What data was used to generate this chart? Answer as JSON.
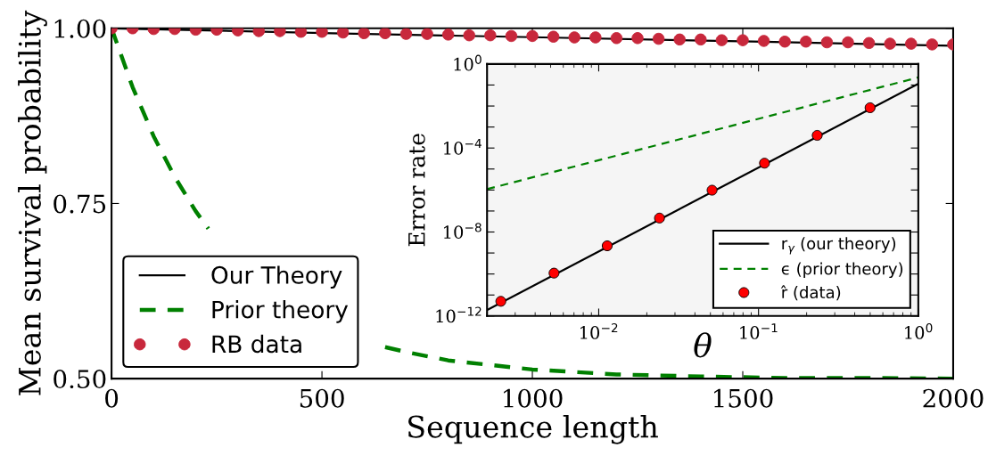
{
  "chart_data": [
    {
      "type": "line",
      "xlabel": "Sequence length",
      "ylabel": "Mean survival probability",
      "xlim": [
        0,
        2000
      ],
      "ylim": [
        0.5,
        1.0
      ],
      "xticks": [
        0,
        500,
        1000,
        1500,
        2000
      ],
      "yticks": [
        {
          "value": 0.5,
          "label": "0.50"
        },
        {
          "value": 0.75,
          "label": "0.75"
        },
        {
          "value": 1.0,
          "label": "1.00"
        }
      ],
      "grid": false,
      "legend": "bottom left",
      "series": [
        {
          "name": "Our Theory",
          "color": "#000000",
          "line_style": "solid",
          "x": [
            0,
            525,
            1025,
            1525,
            2000
          ],
          "values": [
            1.0,
            0.993,
            0.987,
            0.981,
            0.975
          ]
        },
        {
          "name": "Prior theory",
          "color": "#008000",
          "line_style": "dashed",
          "x": [
            0,
            50,
            100,
            150,
            200,
            230,
            300,
            400,
            500,
            600,
            650,
            700,
            800,
            1000,
            1200,
            1400,
            1600,
            1800,
            2000
          ],
          "values": [
            1.0,
            0.916,
            0.846,
            0.788,
            0.739,
            0.714,
            null,
            null,
            null,
            null,
            0.545,
            0.538,
            0.526,
            0.513,
            0.506,
            0.503,
            0.501,
            0.501,
            0.5
          ]
        },
        {
          "name": "RB data",
          "type": "scatter",
          "color": "#c8283c",
          "marker": "circle",
          "x": [
            0,
            50,
            100,
            150,
            200,
            250,
            300,
            350,
            400,
            450,
            500,
            550,
            600,
            650,
            700,
            750,
            800,
            850,
            900,
            950,
            1000,
            1050,
            1100,
            1150,
            1200,
            1250,
            1300,
            1350,
            1400,
            1450,
            1500,
            1550,
            1600,
            1650,
            1700,
            1750,
            1800,
            1850,
            1900,
            1950,
            2000
          ],
          "values": [
            1.0,
            1.0,
            0.999,
            0.999,
            0.998,
            0.998,
            0.997,
            0.996,
            0.996,
            0.995,
            0.995,
            0.994,
            0.993,
            0.993,
            0.992,
            0.992,
            0.991,
            0.99,
            0.99,
            0.989,
            0.989,
            0.988,
            0.987,
            0.987,
            0.986,
            0.986,
            0.985,
            0.984,
            0.984,
            0.983,
            0.983,
            0.982,
            0.981,
            0.981,
            0.98,
            0.98,
            0.979,
            0.978,
            0.978,
            0.977,
            0.977
          ]
        }
      ]
    },
    {
      "type": "line",
      "xlabel": "θ",
      "ylabel": "Error rate",
      "log": "xy",
      "xlim": [
        0.002,
        1
      ],
      "ylim": [
        1e-12,
        1
      ],
      "xticks": [
        {
          "value": 0.01,
          "label": "10$^{−2}$"
        },
        {
          "value": 0.1,
          "label": "10$^{−1}$"
        },
        {
          "value": 1,
          "label": "10$^{0}$"
        }
      ],
      "yticks": [
        {
          "value": 1e-12,
          "label": "10$^{−12}$"
        },
        {
          "value": 1e-11,
          "label": null
        },
        {
          "value": 1e-10,
          "label": null
        },
        {
          "value": 1e-09,
          "label": null
        },
        {
          "value": 1e-08,
          "label": "10$^{−8}$"
        },
        {
          "value": 1e-07,
          "label": null
        },
        {
          "value": 1e-06,
          "label": null
        },
        {
          "value": 1e-05,
          "label": null
        },
        {
          "value": 0.0001,
          "label": "10$^{−4}$"
        },
        {
          "value": 0.001,
          "label": null
        },
        {
          "value": 0.01,
          "label": null
        },
        {
          "value": 0.1,
          "label": null
        },
        {
          "value": 1,
          "label": "10$^{0}$"
        }
      ],
      "grid": false,
      "legend": "bottom right",
      "series": [
        {
          "name": "r$_{γ}$ (our theory)",
          "color": "#000000",
          "line_style": "solid",
          "x": [
            0.002,
            1
          ],
          "values": [
            1.9e-12,
            0.115
          ]
        },
        {
          "name": "ϵ (prior theory)",
          "color": "#008000",
          "line_style": "dashed",
          "x": [
            0.002,
            1
          ],
          "values": [
            1.1e-06,
            0.23
          ]
        },
        {
          "name": "r̂ (data)",
          "type": "scatter",
          "color": "#ff0000",
          "marker": "circle",
          "x": [
            0.00244,
            0.00525,
            0.0113,
            0.024,
            0.0512,
            0.109,
            0.233,
            0.499
          ],
          "values": [
            5e-12,
            1.1e-10,
            2.2e-09,
            4.6e-08,
            9.8e-07,
            1.9e-05,
            0.0004,
            0.0083
          ]
        }
      ]
    }
  ]
}
